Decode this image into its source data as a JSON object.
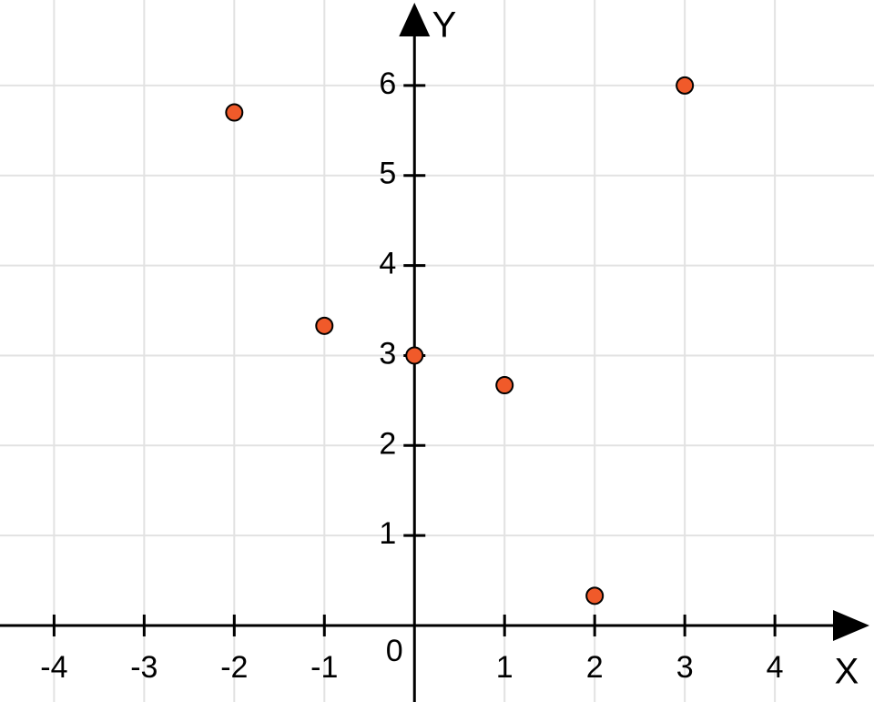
{
  "chart_data": {
    "type": "scatter",
    "x_label": "X",
    "y_label": "Y",
    "origin_label": 0,
    "x": [
      -2,
      -1,
      0,
      1,
      2,
      3
    ],
    "values": [
      5.7,
      3.33,
      3,
      2.67,
      0.33,
      6
    ],
    "color": "#f05a2a",
    "xlim": [
      -4.6,
      5.1
    ],
    "ylim": [
      -0.85,
      6.95
    ],
    "xticks": [
      -4,
      -3,
      -2,
      -1,
      1,
      2,
      3,
      4
    ],
    "yticks": [
      1,
      2,
      3,
      4,
      5,
      6
    ],
    "grid": true
  }
}
